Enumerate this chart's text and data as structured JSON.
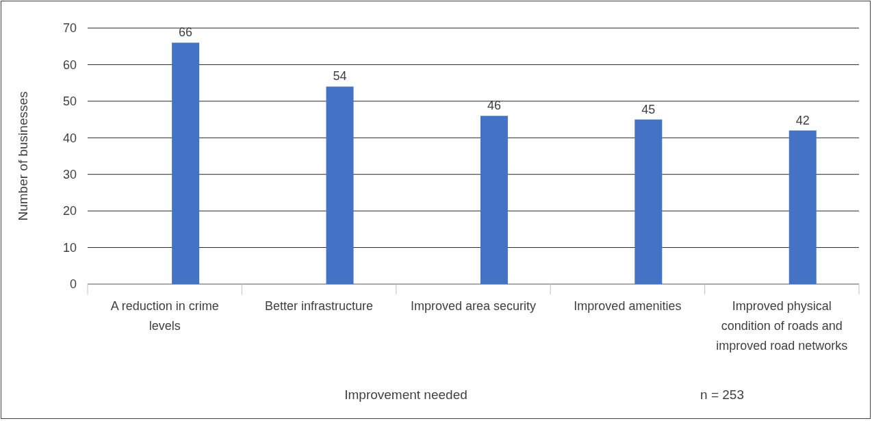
{
  "chart_data": {
    "type": "bar",
    "xlabel": "Improvement needed",
    "ylabel": "Number of businesses",
    "categories": [
      "A reduction in crime levels",
      "Better infrastructure",
      "Improved area security",
      "Improved amenities",
      "Improved physical condition of roads and improved road networks"
    ],
    "values": [
      66,
      54,
      46,
      45,
      42
    ],
    "color": "#4472c4",
    "ylim": [
      0,
      70
    ],
    "yticks": [
      0,
      10,
      20,
      30,
      40,
      50,
      60,
      70
    ],
    "grid": "y",
    "data_labels": true,
    "annotations": [
      "n = 253"
    ]
  }
}
